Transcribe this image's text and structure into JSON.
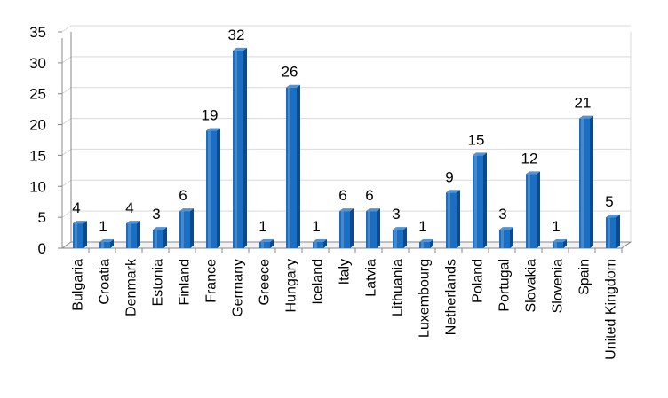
{
  "chart_data": {
    "type": "bar",
    "title": "",
    "xlabel": "",
    "ylabel": "",
    "categories": [
      "Bulgaria",
      "Croatia",
      "Denmark",
      "Estonia",
      "Finland",
      "France",
      "Germany",
      "Greece",
      "Hungary",
      "Iceland",
      "Italy",
      "Latvia",
      "Lithuania",
      "Luxembourg",
      "Netherlands",
      "Poland",
      "Portugal",
      "Slovakia",
      "Slovenia",
      "Spain",
      "United Kingdom"
    ],
    "values": [
      4,
      1,
      4,
      3,
      6,
      19,
      32,
      1,
      26,
      1,
      6,
      6,
      3,
      1,
      9,
      15,
      3,
      12,
      1,
      21,
      5
    ],
    "ylim": [
      0,
      35
    ],
    "yticks": [
      0,
      5,
      10,
      15,
      20,
      25,
      30,
      35
    ],
    "grid": true,
    "legend": "none",
    "style": "3d-column"
  },
  "colors": {
    "bar_front": "#1a6fc4",
    "bar_side": "#0b4a8c",
    "bar_top": "#4a95dc",
    "grid": "#d9d9d9",
    "background": "#ffffff"
  }
}
